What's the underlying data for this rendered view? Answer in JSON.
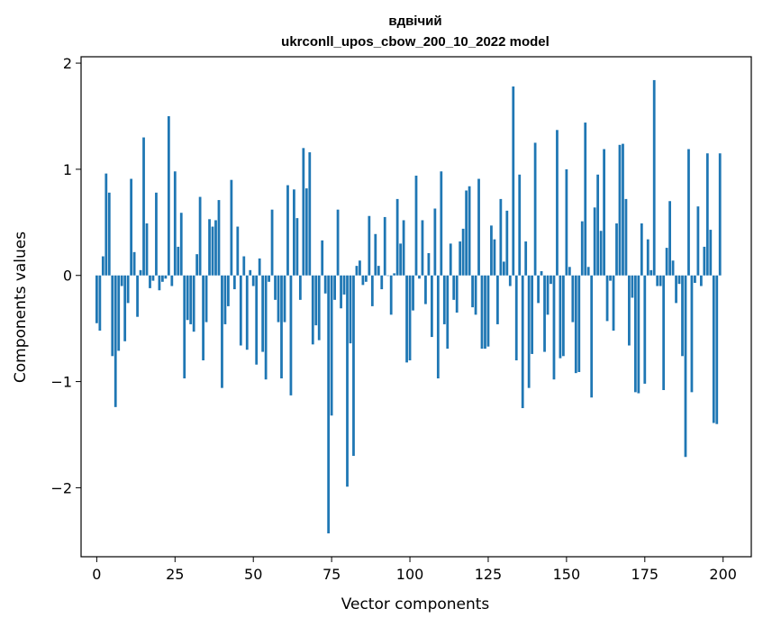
{
  "chart_data": {
    "type": "bar",
    "title_line1": "вдвічий",
    "title_line2": "ukrconll_upos_cbow_200_10_2022 model",
    "xlabel": "Vector components",
    "ylabel": "Components values",
    "xlim": [
      -5,
      209
    ],
    "ylim": [
      -2.65,
      2.06
    ],
    "xticks": [
      0,
      25,
      50,
      75,
      100,
      125,
      150,
      175,
      200
    ],
    "xtick_labels": [
      "0",
      "25",
      "50",
      "75",
      "100",
      "125",
      "150",
      "175",
      "200"
    ],
    "yticks": [
      -2,
      -1,
      0,
      1,
      2
    ],
    "ytick_labels": [
      "−2",
      "−1",
      "0",
      "1",
      "2"
    ],
    "bar_color": "#1f77b4",
    "grid": false,
    "x": [
      0,
      1,
      2,
      3,
      4,
      5,
      6,
      7,
      8,
      9,
      10,
      11,
      12,
      13,
      14,
      15,
      16,
      17,
      18,
      19,
      20,
      21,
      22,
      23,
      24,
      25,
      26,
      27,
      28,
      29,
      30,
      31,
      32,
      33,
      34,
      35,
      36,
      37,
      38,
      39,
      40,
      41,
      42,
      43,
      44,
      45,
      46,
      47,
      48,
      49,
      50,
      51,
      52,
      53,
      54,
      55,
      56,
      57,
      58,
      59,
      60,
      61,
      62,
      63,
      64,
      65,
      66,
      67,
      68,
      69,
      70,
      71,
      72,
      73,
      74,
      75,
      76,
      77,
      78,
      79,
      80,
      81,
      82,
      83,
      84,
      85,
      86,
      87,
      88,
      89,
      90,
      91,
      92,
      93,
      94,
      95,
      96,
      97,
      98,
      99,
      100,
      101,
      102,
      103,
      104,
      105,
      106,
      107,
      108,
      109,
      110,
      111,
      112,
      113,
      114,
      115,
      116,
      117,
      118,
      119,
      120,
      121,
      122,
      123,
      124,
      125,
      126,
      127,
      128,
      129,
      130,
      131,
      132,
      133,
      134,
      135,
      136,
      137,
      138,
      139,
      140,
      141,
      142,
      143,
      144,
      145,
      146,
      147,
      148,
      149,
      150,
      151,
      152,
      153,
      154,
      155,
      156,
      157,
      158,
      159,
      160,
      161,
      162,
      163,
      164,
      165,
      166,
      167,
      168,
      169,
      170,
      171,
      172,
      173,
      174,
      175,
      176,
      177,
      178,
      179,
      180,
      181,
      182,
      183,
      184,
      185,
      186,
      187,
      188,
      189,
      190,
      191,
      192,
      193,
      194,
      195,
      196,
      197,
      198,
      199
    ],
    "values": [
      -0.45,
      -0.52,
      0.18,
      0.96,
      0.78,
      -0.76,
      -1.24,
      -0.71,
      -0.1,
      -0.62,
      -0.26,
      0.91,
      0.22,
      -0.39,
      0.05,
      1.3,
      0.49,
      -0.12,
      -0.05,
      0.78,
      -0.14,
      -0.06,
      -0.03,
      1.5,
      -0.1,
      0.98,
      0.27,
      0.59,
      -0.97,
      -0.42,
      -0.46,
      -0.53,
      0.2,
      0.74,
      -0.8,
      -0.44,
      0.53,
      0.46,
      0.52,
      0.71,
      -1.06,
      -0.46,
      -0.29,
      0.9,
      -0.13,
      0.46,
      -0.66,
      0.18,
      -0.7,
      0.05,
      -0.1,
      -0.84,
      0.16,
      -0.72,
      -0.98,
      -0.06,
      0.62,
      -0.23,
      -0.44,
      -0.97,
      -0.44,
      0.85,
      -1.13,
      0.81,
      0.54,
      -0.23,
      1.2,
      0.82,
      1.16,
      -0.65,
      -0.47,
      -0.61,
      0.33,
      -0.17,
      -2.43,
      -1.32,
      -0.23,
      0.62,
      -0.31,
      -0.18,
      -1.99,
      -0.64,
      -1.7,
      0.09,
      0.14,
      -0.09,
      -0.06,
      0.56,
      -0.29,
      0.39,
      0.09,
      -0.13,
      0.55,
      0.0,
      -0.37,
      0.02,
      0.72,
      0.3,
      0.52,
      -0.82,
      -0.8,
      -0.33,
      0.94,
      -0.03,
      0.52,
      -0.27,
      0.21,
      -0.58,
      0.63,
      -0.97,
      0.98,
      -0.46,
      -0.69,
      0.3,
      -0.23,
      -0.35,
      0.32,
      0.44,
      0.8,
      0.84,
      -0.3,
      -0.37,
      0.91,
      -0.69,
      -0.69,
      -0.67,
      0.47,
      0.34,
      -0.46,
      0.72,
      0.13,
      0.61,
      -0.1,
      1.78,
      -0.8,
      0.95,
      -1.25,
      0.32,
      -1.06,
      -0.74,
      1.25,
      -0.26,
      0.04,
      -0.72,
      -0.37,
      -0.08,
      -0.98,
      1.37,
      -0.78,
      -0.76,
      1.0,
      0.08,
      -0.44,
      -0.92,
      -0.91,
      0.51,
      1.44,
      0.08,
      -1.15,
      0.64,
      0.95,
      0.42,
      1.19,
      -0.43,
      -0.05,
      -0.52,
      0.49,
      1.23,
      1.24,
      0.72,
      -0.66,
      -0.21,
      -1.1,
      -1.11,
      0.49,
      -1.02,
      0.34,
      0.05,
      1.84,
      -0.1,
      -0.1,
      -1.08,
      0.26,
      0.7,
      0.14,
      -0.26,
      -0.08,
      -0.76,
      -1.71,
      1.19,
      -1.1,
      -0.07,
      0.65,
      -0.1,
      0.27,
      1.15,
      0.43,
      -1.39,
      -1.4,
      1.15
    ]
  }
}
